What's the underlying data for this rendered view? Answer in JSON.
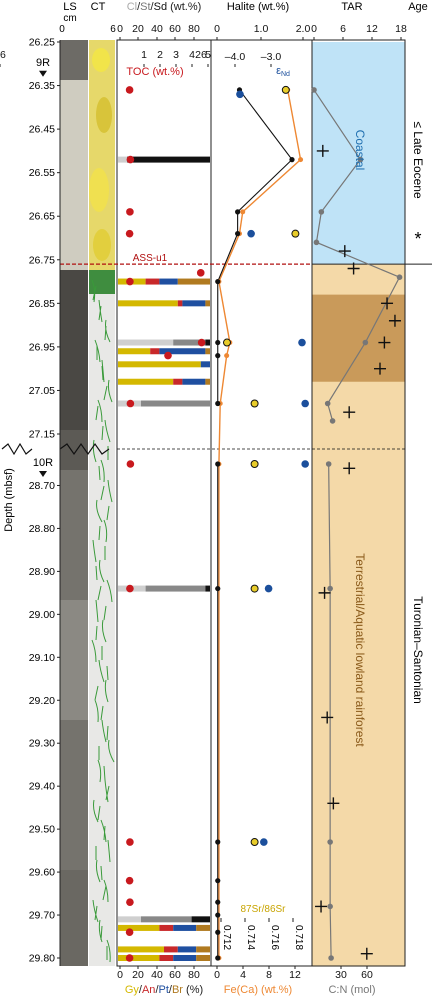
{
  "header": {
    "ls_label": "LS",
    "ls_unit": "cm",
    "ct_label": "CT",
    "ls_scale": [
      "0",
      "6"
    ],
    "lith_label_parts": [
      {
        "text": "Cl",
        "color": "#aaaaaa"
      },
      {
        "text": "/",
        "color": "#222222"
      },
      {
        "text": "St",
        "color": "#777777"
      },
      {
        "text": "/",
        "color": "#222222"
      },
      {
        "text": "Sd",
        "color": "#111111"
      },
      {
        "text": " (wt.%)",
        "color": "#222222"
      }
    ],
    "lith_ticks": [
      "0",
      "20",
      "40",
      "60",
      "80"
    ],
    "toc_label": "TOC (wt.%)",
    "toc_ticks": [
      "1",
      "2",
      "3",
      "4",
      "5",
      "26"
    ],
    "halite_label": "Halite (wt.%)",
    "halite_ticks": [
      "0",
      "1.0",
      "2.0"
    ],
    "eps_label": "ε",
    "eps_sub": "Nd",
    "eps_ticks": [
      "–4.0",
      "–3.0"
    ],
    "tar_label": "TAR",
    "tar_ticks": [
      "0",
      "6",
      "12",
      "18"
    ],
    "age_label": "Age"
  },
  "footer": {
    "mineral_label_parts": [
      {
        "text": "Gy",
        "color": "#d4b800"
      },
      {
        "text": "/",
        "color": "#222222"
      },
      {
        "text": "An",
        "color": "#c8282a"
      },
      {
        "text": "/",
        "color": "#222222"
      },
      {
        "text": "Pt",
        "color": "#1f4fa0"
      },
      {
        "text": "/",
        "color": "#222222"
      },
      {
        "text": "Br",
        "color": "#b07a20"
      },
      {
        "text": " (%)",
        "color": "#222222"
      }
    ],
    "mineral_ticks": [
      "0",
      "20",
      "40",
      "60",
      "80"
    ],
    "fe_label": "Fe(Ca) (wt.%)",
    "fe_ticks": [
      "0",
      "4",
      "8",
      "12"
    ],
    "cn_label": "C:N (mol)",
    "cn_ticks": [
      "30",
      "60"
    ],
    "sr_label": "87Sr/86Sr",
    "sr_ticks": [
      "0.712",
      "0.714",
      "0.716",
      "0.718"
    ]
  },
  "depth_axis": {
    "title": "Depth (mbsf)",
    "upper_ticks": [
      "26.25",
      "26.35",
      "26.45",
      "26.55",
      "26.65",
      "26.75",
      "26.85",
      "26.95",
      "27.05",
      "27.15"
    ],
    "lower_ticks": [
      "28.70",
      "28.80",
      "28.90",
      "29.00",
      "29.10",
      "29.20",
      "29.30",
      "29.40",
      "29.50",
      "29.60",
      "29.70",
      "29.80"
    ]
  },
  "core_labels": [
    {
      "text": "9R",
      "depth": 26.3
    },
    {
      "text": "10R",
      "depth": 28.65
    }
  ],
  "annotations": {
    "ass_label": "ASS-u1",
    "coastal": "Coastal",
    "lowland_parts": [
      {
        "text": "Terrestrial/",
        "color": "#8a5a1a"
      },
      {
        "text": "Aquatic lowland rainforest",
        "color": "#8a5a1a"
      }
    ],
    "age_upper": "≤ Late Eocene",
    "age_lower": "Turonian–Santonian",
    "star": "*"
  },
  "colors": {
    "toc": "#c8191e",
    "halite": "#111111",
    "fe": "#ee8833",
    "eps": "#1b4f9c",
    "sr_fill": "#e8cc2a",
    "tar": "#777777",
    "coastal_fill": "#bfe3f7",
    "lowland_fill": "#f4d9a8",
    "lowland_dark": "#c99a5a",
    "ass_line": "#b01010",
    "gypsum": "#d4b800",
    "anhydrite": "#c8282a",
    "pyrite": "#1f4fa0",
    "brown": "#b07a20",
    "clay": "#cfcfcf",
    "silt": "#888888",
    "sand": "#111111"
  },
  "chart_data": {
    "type": "scatter",
    "depth_unit": "mbsf",
    "toc": [
      {
        "depth": 26.36,
        "value": 0.1
      },
      {
        "depth": 26.52,
        "value": 0.15
      },
      {
        "depth": 26.64,
        "value": 0.12
      },
      {
        "depth": 26.69,
        "value": 0.1
      },
      {
        "depth": 26.78,
        "value": 26.5
      },
      {
        "depth": 26.8,
        "value": 0.12
      },
      {
        "depth": 26.94,
        "value": 4.6
      },
      {
        "depth": 26.97,
        "value": 2.5
      },
      {
        "depth": 27.08,
        "value": 0.15
      },
      {
        "depth": 28.65,
        "value": 0.15
      },
      {
        "depth": 28.94,
        "value": 0.12
      },
      {
        "depth": 29.53,
        "value": 0.12
      },
      {
        "depth": 29.62,
        "value": 0.1
      },
      {
        "depth": 29.67,
        "value": 0.12
      },
      {
        "depth": 29.74,
        "value": 0.1
      },
      {
        "depth": 29.8,
        "value": 0.1
      }
    ],
    "halite": [
      {
        "depth": 26.36,
        "value": 0.6
      },
      {
        "depth": 26.52,
        "value": 2.0
      },
      {
        "depth": 26.64,
        "value": 0.55
      },
      {
        "depth": 26.69,
        "value": 0.55
      },
      {
        "depth": 26.8,
        "value": 0.02
      },
      {
        "depth": 26.94,
        "value": 0.02
      },
      {
        "depth": 26.97,
        "value": 0.02
      },
      {
        "depth": 27.08,
        "value": 0.02
      },
      {
        "depth": 28.65,
        "value": 0.02
      },
      {
        "depth": 28.94,
        "value": 0.02
      },
      {
        "depth": 29.53,
        "value": 0.02
      },
      {
        "depth": 29.62,
        "value": 0.02
      },
      {
        "depth": 29.67,
        "value": 0.02
      },
      {
        "depth": 29.7,
        "value": 0.02
      },
      {
        "depth": 29.74,
        "value": 0.02
      },
      {
        "depth": 29.8,
        "value": 0.02
      }
    ],
    "fe_ca": [
      {
        "depth": 26.36,
        "value": 11.0
      },
      {
        "depth": 26.52,
        "value": 13.0
      },
      {
        "depth": 26.64,
        "value": 4.0
      },
      {
        "depth": 26.69,
        "value": 3.5
      },
      {
        "depth": 26.8,
        "value": 0.3
      },
      {
        "depth": 26.94,
        "value": 2.0
      },
      {
        "depth": 26.97,
        "value": 1.5
      },
      {
        "depth": 27.08,
        "value": 0.5
      },
      {
        "depth": 28.65,
        "value": 0.3
      },
      {
        "depth": 29.8,
        "value": 0.3
      }
    ],
    "epsilon_nd": [
      {
        "depth": 26.37,
        "value": -4.25
      },
      {
        "depth": 26.69,
        "value": -3.9
      },
      {
        "depth": 26.94,
        "value": -2.3
      },
      {
        "depth": 27.08,
        "value": -2.2
      },
      {
        "depth": 28.65,
        "value": -2.2
      },
      {
        "depth": 28.94,
        "value": -3.35
      },
      {
        "depth": 29.53,
        "value": -3.5
      }
    ],
    "sr_ratio": [
      {
        "depth": 26.36,
        "value": 0.7174
      },
      {
        "depth": 26.69,
        "value": 0.7182
      },
      {
        "depth": 26.94,
        "value": 0.7125
      },
      {
        "depth": 27.08,
        "value": 0.7148
      },
      {
        "depth": 28.65,
        "value": 0.7148
      },
      {
        "depth": 28.94,
        "value": 0.7148
      },
      {
        "depth": 29.53,
        "value": 0.7148
      }
    ],
    "tar": [
      {
        "depth": 26.36,
        "value": 0
      },
      {
        "depth": 26.52,
        "value": 9.5
      },
      {
        "depth": 26.64,
        "value": 1.5
      },
      {
        "depth": 26.71,
        "value": 0.5
      },
      {
        "depth": 26.79,
        "value": 17.5
      },
      {
        "depth": 26.94,
        "value": 10.5
      },
      {
        "depth": 27.08,
        "value": 2.8
      },
      {
        "depth": 27.12,
        "value": 3.8
      },
      {
        "depth": 28.65,
        "value": 3.0
      },
      {
        "depth": 28.94,
        "value": 3.3
      },
      {
        "depth": 29.53,
        "value": 3.3
      },
      {
        "depth": 29.68,
        "value": 3.3
      },
      {
        "depth": 29.8,
        "value": 3.5
      }
    ],
    "cn": [
      {
        "depth": 26.5,
        "value": 10
      },
      {
        "depth": 26.73,
        "value": 35
      },
      {
        "depth": 26.77,
        "value": 45
      },
      {
        "depth": 26.85,
        "value": 83
      },
      {
        "depth": 26.89,
        "value": 92
      },
      {
        "depth": 26.94,
        "value": 80
      },
      {
        "depth": 27.0,
        "value": 75
      },
      {
        "depth": 27.1,
        "value": 40
      },
      {
        "depth": 28.66,
        "value": 40
      },
      {
        "depth": 28.95,
        "value": 12
      },
      {
        "depth": 29.24,
        "value": 15
      },
      {
        "depth": 29.44,
        "value": 22
      },
      {
        "depth": 29.68,
        "value": 8
      },
      {
        "depth": 29.79,
        "value": 60
      }
    ],
    "lithology_bars": [
      {
        "depth": 26.52,
        "clay": 10,
        "silt": 0,
        "sand": 90
      },
      {
        "depth": 26.94,
        "clay": 60,
        "silt": 35,
        "sand": 5
      },
      {
        "depth": 27.08,
        "clay": 25,
        "silt": 75,
        "sand": 0
      },
      {
        "depth": 28.94,
        "clay": 30,
        "silt": 65,
        "sand": 5
      },
      {
        "depth": 29.71,
        "clay": 25,
        "silt": 55,
        "sand": 20
      }
    ],
    "mineral_bars": [
      {
        "depth": 26.8,
        "gy": 30,
        "an": 15,
        "pt": 20,
        "br": 35
      },
      {
        "depth": 26.85,
        "gy": 65,
        "an": 5,
        "pt": 25,
        "br": 5
      },
      {
        "depth": 26.96,
        "gy": 35,
        "an": 10,
        "pt": 50,
        "br": 5
      },
      {
        "depth": 26.99,
        "gy": 90,
        "an": 0,
        "pt": 10,
        "br": 0
      },
      {
        "depth": 27.03,
        "gy": 60,
        "an": 10,
        "pt": 25,
        "br": 5
      },
      {
        "depth": 29.73,
        "gy": 45,
        "an": 15,
        "pt": 25,
        "br": 15
      },
      {
        "depth": 29.78,
        "gy": 50,
        "an": 15,
        "pt": 20,
        "br": 15
      },
      {
        "depth": 29.8,
        "gy": 45,
        "an": 15,
        "pt": 25,
        "br": 15
      }
    ],
    "zones": [
      {
        "name": "Coastal",
        "top": 26.25,
        "bottom": 26.76
      },
      {
        "name": "lowland",
        "top": 26.76,
        "bottom": 29.82
      },
      {
        "name": "lowland_dark",
        "top": 26.83,
        "bottom": 27.03
      }
    ],
    "ass_u1_depth": 26.76,
    "break": {
      "upper_end": 27.15,
      "lower_start": 28.65
    }
  }
}
